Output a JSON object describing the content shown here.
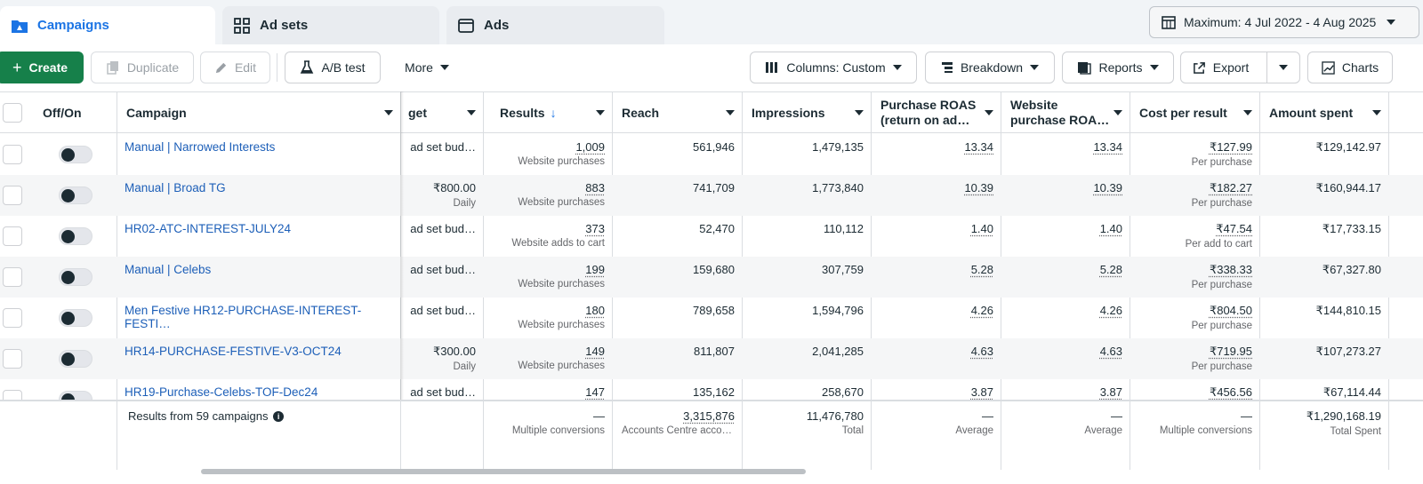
{
  "tabs": [
    {
      "label": "Campaigns",
      "icon": "folder-icon"
    },
    {
      "label": "Ad sets",
      "icon": "grid-icon"
    },
    {
      "label": "Ads",
      "icon": "ad-window-icon"
    }
  ],
  "date_range": "Maximum: 4 Jul 2022 - 4 Aug 2025",
  "toolbar": {
    "create": "Create",
    "duplicate": "Duplicate",
    "edit": "Edit",
    "ab_test": "A/B test",
    "more": "More",
    "columns": "Columns: Custom",
    "breakdown": "Breakdown",
    "reports": "Reports",
    "export": "Export",
    "charts": "Charts"
  },
  "headers": {
    "offon": "Off/On",
    "campaign": "Campaign",
    "budget": "get",
    "results": "Results",
    "reach": "Reach",
    "impressions": "Impressions",
    "roas": "Purchase ROAS (return on ad…",
    "web_roas": "Website purchase ROA…",
    "cpr": "Cost per result",
    "spent": "Amount spent"
  },
  "rows": [
    {
      "campaign": "Manual | Narrowed Interests",
      "budget": "ad set bud…",
      "budget_sub": "",
      "results": "1,009",
      "results_sub": "Website purchases",
      "reach": "561,946",
      "impressions": "1,479,135",
      "roas": "13.34",
      "web_roas": "13.34",
      "cpr": "₹127.99",
      "cpr_sub": "Per purchase",
      "spent": "₹129,142.97"
    },
    {
      "campaign": "Manual | Broad TG",
      "budget": "₹800.00",
      "budget_sub": "Daily",
      "results": "883",
      "results_sub": "Website purchases",
      "reach": "741,709",
      "impressions": "1,773,840",
      "roas": "10.39",
      "web_roas": "10.39",
      "cpr": "₹182.27",
      "cpr_sub": "Per purchase",
      "spent": "₹160,944.17"
    },
    {
      "campaign": "HR02-ATC-INTEREST-JULY24",
      "budget": "ad set bud…",
      "budget_sub": "",
      "results": "373",
      "results_sub": "Website adds to cart",
      "reach": "52,470",
      "impressions": "110,112",
      "roas": "1.40",
      "web_roas": "1.40",
      "cpr": "₹47.54",
      "cpr_sub": "Per add to cart",
      "spent": "₹17,733.15"
    },
    {
      "campaign": "Manual | Celebs",
      "budget": "ad set bud…",
      "budget_sub": "",
      "results": "199",
      "results_sub": "Website purchases",
      "reach": "159,680",
      "impressions": "307,759",
      "roas": "5.28",
      "web_roas": "5.28",
      "cpr": "₹338.33",
      "cpr_sub": "Per purchase",
      "spent": "₹67,327.80"
    },
    {
      "campaign": "Men Festive HR12-PURCHASE-INTEREST-FESTI…",
      "budget": "ad set bud…",
      "budget_sub": "",
      "results": "180",
      "results_sub": "Website purchases",
      "reach": "789,658",
      "impressions": "1,594,796",
      "roas": "4.26",
      "web_roas": "4.26",
      "cpr": "₹804.50",
      "cpr_sub": "Per purchase",
      "spent": "₹144,810.15"
    },
    {
      "campaign": "HR14-PURCHASE-FESTIVE-V3-OCT24",
      "budget": "₹300.00",
      "budget_sub": "Daily",
      "results": "149",
      "results_sub": "Website purchases",
      "reach": "811,807",
      "impressions": "2,041,285",
      "roas": "4.63",
      "web_roas": "4.63",
      "cpr": "₹719.95",
      "cpr_sub": "Per purchase",
      "spent": "₹107,273.27"
    },
    {
      "campaign": "HR19-Purchase-Celebs-TOF-Dec24",
      "budget": "ad set bud…",
      "budget_sub": "",
      "results": "147",
      "results_sub": "",
      "reach": "135,162",
      "impressions": "258,670",
      "roas": "3.87",
      "web_roas": "3.87",
      "cpr": "₹456.56",
      "cpr_sub": "",
      "spent": "₹67,114.44"
    }
  ],
  "footer": {
    "label": "Results from 59 campaigns",
    "results": "—",
    "results_sub": "Multiple conversions",
    "reach": "3,315,876",
    "reach_sub": "Accounts Centre acco…",
    "impressions": "11,476,780",
    "impressions_sub": "Total",
    "roas": "—",
    "roas_sub": "Average",
    "web_roas": "—",
    "web_roas_sub": "Average",
    "cpr": "—",
    "cpr_sub": "Multiple conversions",
    "spent": "₹1,290,168.19",
    "spent_sub": "Total Spent"
  }
}
